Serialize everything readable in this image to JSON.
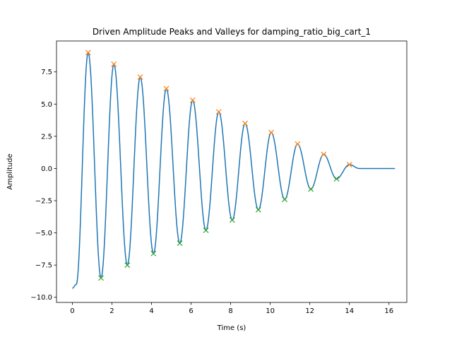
{
  "chart_data": {
    "type": "line",
    "title": "Driven Amplitude Peaks and Valleys for damping_ratio_big_cart_1",
    "xlabel": "Time (s)",
    "ylabel": "Amplitude",
    "xlim": [
      -0.8,
      16.9
    ],
    "ylim": [
      -10.4,
      9.9
    ],
    "xticks": [
      0,
      2,
      4,
      6,
      8,
      10,
      12,
      14,
      16
    ],
    "yticks": [
      -10.0,
      -7.5,
      -5.0,
      -2.5,
      0.0,
      2.5,
      5.0,
      7.5
    ],
    "xtick_labels": [
      "0",
      "2",
      "4",
      "6",
      "8",
      "10",
      "12",
      "14",
      "16"
    ],
    "ytick_labels": [
      "−10.0",
      "−7.5",
      "−5.0",
      "−2.5",
      "0.0",
      "2.5",
      "5.0",
      "7.5"
    ],
    "grid": false,
    "colors": {
      "signal": "#1f77b4",
      "peaks": "#ff7f0e",
      "valleys": "#2ca02c"
    },
    "signal": {
      "start": [
        0.0,
        -9.3
      ],
      "end_time": 16.3,
      "end_value": 0.0
    },
    "peaks": {
      "marker": "x",
      "x": [
        0.8,
        2.1,
        3.43,
        4.75,
        6.08,
        7.4,
        8.73,
        10.05,
        11.38,
        12.7,
        14.0
      ],
      "y": [
        9.0,
        8.1,
        7.1,
        6.2,
        5.3,
        4.4,
        3.5,
        2.8,
        1.9,
        1.1,
        0.3
      ]
    },
    "valleys": {
      "marker": "x",
      "x": [
        1.45,
        2.78,
        4.1,
        5.43,
        6.75,
        8.08,
        9.4,
        10.73,
        12.05,
        13.35
      ],
      "y": [
        -8.5,
        -7.5,
        -6.6,
        -5.8,
        -4.8,
        -4.0,
        -3.2,
        -2.4,
        -1.6,
        -0.8
      ]
    }
  }
}
